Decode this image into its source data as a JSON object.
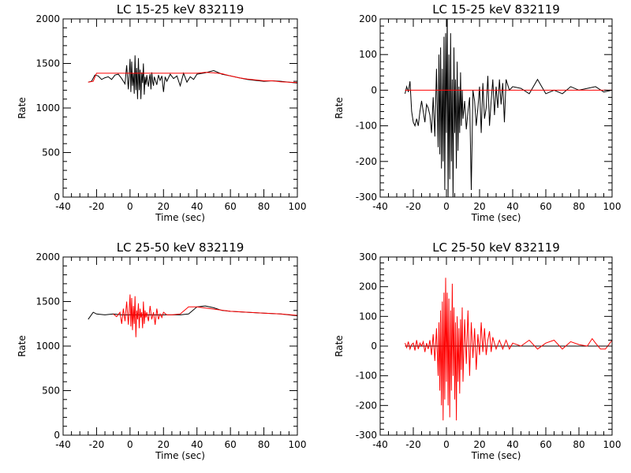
{
  "chart_data": [
    {
      "type": "line",
      "title": "LC 15-25 keV  832119",
      "xlabel": "Time (sec)",
      "ylabel": "Rate",
      "xlim": [
        -40,
        100
      ],
      "ylim": [
        0,
        2000
      ],
      "xticks": [
        -40,
        -20,
        0,
        20,
        40,
        60,
        80,
        100
      ],
      "yticks": [
        0,
        500,
        1000,
        1500,
        2000
      ],
      "grid": false,
      "series": [
        {
          "color": "#000000",
          "x": [
            -25,
            -23,
            -21,
            -19,
            -17,
            -15,
            -13,
            -11,
            -9,
            -7,
            -5,
            -3,
            -2,
            -1,
            0,
            0.5,
            1,
            1.5,
            2,
            2.5,
            3,
            3.5,
            4,
            4.5,
            5,
            5.5,
            6,
            6.5,
            7,
            7.5,
            8,
            8.5,
            9,
            9.5,
            10,
            10.5,
            11,
            11.5,
            12,
            12.5,
            13,
            13.5,
            14,
            14.5,
            15,
            16,
            17,
            18,
            19,
            20,
            21,
            22,
            24,
            26,
            28,
            30,
            32,
            34,
            36,
            38,
            40,
            45,
            50,
            55,
            60,
            65,
            70,
            75,
            80,
            85,
            90,
            95,
            100
          ],
          "y": [
            1290,
            1300,
            1370,
            1360,
            1320,
            1340,
            1350,
            1320,
            1370,
            1380,
            1330,
            1270,
            1480,
            1210,
            1550,
            1180,
            1520,
            1250,
            1390,
            1160,
            1590,
            1200,
            1450,
            1100,
            1560,
            1200,
            1430,
            1100,
            1400,
            1280,
            1500,
            1150,
            1350,
            1260,
            1370,
            1300,
            1240,
            1330,
            1380,
            1210,
            1400,
            1300,
            1250,
            1350,
            1320,
            1260,
            1370,
            1310,
            1360,
            1180,
            1350,
            1300,
            1380,
            1330,
            1360,
            1250,
            1390,
            1290,
            1350,
            1320,
            1380,
            1395,
            1420,
            1380,
            1360,
            1340,
            1320,
            1310,
            1300,
            1305,
            1300,
            1290,
            1280
          ]
        },
        {
          "color": "#ff0000",
          "x": [
            -25,
            -22,
            -20,
            0,
            20,
            40,
            45,
            50,
            55,
            60,
            65,
            70,
            75,
            80,
            85,
            90,
            95,
            100
          ],
          "y": [
            1290,
            1300,
            1390,
            1390,
            1390,
            1390,
            1400,
            1395,
            1385,
            1360,
            1340,
            1325,
            1315,
            1305,
            1305,
            1295,
            1290,
            1285
          ]
        }
      ]
    },
    {
      "type": "line",
      "title": "LC 15-25 keV  832119",
      "xlabel": "Time (sec)",
      "ylabel": "Rate",
      "xlim": [
        -40,
        100
      ],
      "ylim": [
        -300,
        200
      ],
      "xticks": [
        -40,
        -20,
        0,
        20,
        40,
        60,
        80,
        100
      ],
      "yticks": [
        -300,
        -200,
        -100,
        0,
        100,
        200
      ],
      "grid": false,
      "series": [
        {
          "color": "#000000",
          "x": [
            -25,
            -24,
            -23,
            -22,
            -21,
            -20,
            -19,
            -18,
            -17,
            -16,
            -15,
            -14,
            -13,
            -12,
            -11,
            -10,
            -9,
            -8,
            -7,
            -6,
            -5,
            -4.5,
            -4,
            -3.5,
            -3,
            -2.5,
            -2,
            -1.5,
            -1,
            -0.5,
            0,
            0.5,
            1,
            1.5,
            2,
            2.5,
            3,
            3.5,
            4,
            4.5,
            5,
            5.5,
            6,
            6.5,
            7,
            7.5,
            8,
            8.5,
            9,
            9.5,
            10,
            11,
            12,
            13,
            14,
            15,
            16,
            17,
            18,
            19,
            20,
            21,
            22,
            23,
            24,
            25,
            26,
            27,
            28,
            29,
            30,
            31,
            32,
            33,
            34,
            35,
            36,
            38,
            40,
            45,
            50,
            55,
            60,
            65,
            70,
            75,
            80,
            85,
            90,
            95,
            100
          ],
          "y": [
            -10,
            10,
            -5,
            25,
            -60,
            -90,
            -100,
            -80,
            -100,
            -60,
            -30,
            -60,
            -90,
            -40,
            -50,
            -70,
            -120,
            -20,
            -130,
            60,
            -160,
            100,
            -180,
            120,
            -220,
            60,
            -200,
            150,
            -280,
            160,
            -120,
            220,
            -300,
            100,
            -250,
            160,
            -200,
            30,
            -310,
            120,
            -120,
            30,
            -220,
            80,
            -170,
            10,
            -120,
            50,
            -100,
            0,
            -80,
            -30,
            -110,
            -60,
            -20,
            -280,
            0,
            -30,
            -100,
            -50,
            10,
            -120,
            20,
            -80,
            -50,
            40,
            -100,
            -30,
            30,
            -70,
            10,
            -50,
            30,
            -40,
            20,
            -90,
            30,
            0,
            10,
            5,
            -10,
            30,
            -10,
            0,
            -10,
            10,
            0,
            5,
            10,
            -5,
            0
          ]
        },
        {
          "color": "#ff0000",
          "x": [
            -25,
            100
          ],
          "y": [
            0,
            0
          ]
        }
      ]
    },
    {
      "type": "line",
      "title": "LC 25-50 keV  832119",
      "xlabel": "Time (sec)",
      "ylabel": "Rate",
      "xlim": [
        -40,
        100
      ],
      "ylim": [
        0,
        2000
      ],
      "xticks": [
        -40,
        -20,
        0,
        20,
        40,
        60,
        80,
        100
      ],
      "yticks": [
        0,
        500,
        1000,
        1500,
        2000
      ],
      "grid": false,
      "series": [
        {
          "color": "#000000",
          "x": [
            -25,
            -22,
            -20,
            -15,
            -10,
            -5,
            0,
            10,
            20,
            30,
            35,
            40,
            45,
            50,
            55,
            60,
            70,
            80,
            90,
            100
          ],
          "y": [
            1300,
            1380,
            1360,
            1350,
            1360,
            1350,
            1350,
            1350,
            1350,
            1350,
            1360,
            1440,
            1450,
            1430,
            1400,
            1390,
            1380,
            1370,
            1360,
            1340
          ]
        },
        {
          "color": "#ff0000",
          "x": [
            -10,
            -8,
            -6,
            -5,
            -4,
            -3,
            -2,
            -1,
            0,
            0.5,
            1,
            1.5,
            2,
            2.5,
            3,
            3.5,
            4,
            4.5,
            5,
            5.5,
            6,
            6.5,
            7,
            7.5,
            8,
            8.5,
            9,
            9.5,
            10,
            11,
            12,
            13,
            14,
            15,
            16,
            17,
            18,
            19,
            20,
            22,
            25,
            30,
            35,
            40,
            60,
            80,
            90,
            100
          ],
          "y": [
            1360,
            1330,
            1380,
            1250,
            1420,
            1280,
            1500,
            1240,
            1580,
            1220,
            1540,
            1180,
            1450,
            1250,
            1560,
            1100,
            1400,
            1300,
            1480,
            1200,
            1420,
            1320,
            1380,
            1200,
            1500,
            1250,
            1400,
            1320,
            1380,
            1280,
            1450,
            1300,
            1380,
            1240,
            1420,
            1300,
            1360,
            1320,
            1380,
            1350,
            1350,
            1360,
            1440,
            1440,
            1390,
            1370,
            1360,
            1345
          ]
        }
      ]
    },
    {
      "type": "line",
      "title": "LC 25-50 keV  832119",
      "xlabel": "Time (sec)",
      "ylabel": "Rate",
      "xlim": [
        -40,
        100
      ],
      "ylim": [
        -300,
        300
      ],
      "xticks": [
        -40,
        -20,
        0,
        20,
        40,
        60,
        80,
        100
      ],
      "yticks": [
        -300,
        -200,
        -100,
        0,
        100,
        200,
        300
      ],
      "grid": false,
      "series": [
        {
          "color": "#000000",
          "x": [
            -25,
            100
          ],
          "y": [
            0,
            0
          ]
        },
        {
          "color": "#ff0000",
          "x": [
            -25,
            -24,
            -23,
            -22,
            -21,
            -20,
            -19,
            -18,
            -17,
            -16,
            -15,
            -14,
            -13,
            -12,
            -11,
            -10,
            -9,
            -8,
            -7,
            -6,
            -5,
            -4.5,
            -4,
            -3.5,
            -3,
            -2.5,
            -2,
            -1.5,
            -1,
            -0.5,
            0,
            0.5,
            1,
            1.5,
            2,
            2.5,
            3,
            3.5,
            4,
            4.5,
            5,
            5.5,
            6,
            6.5,
            7,
            7.5,
            8,
            8.5,
            9,
            9.5,
            10,
            11,
            12,
            13,
            14,
            15,
            16,
            17,
            18,
            19,
            20,
            21,
            22,
            23,
            24,
            25,
            26,
            27,
            28,
            30,
            32,
            34,
            36,
            38,
            40,
            45,
            50,
            55,
            60,
            65,
            70,
            75,
            80,
            85,
            88,
            90,
            93,
            96,
            100
          ],
          "y": [
            10,
            -5,
            15,
            -10,
            5,
            10,
            -15,
            20,
            -10,
            10,
            0,
            15,
            -20,
            10,
            -10,
            20,
            -30,
            40,
            -50,
            60,
            -100,
            80,
            -150,
            120,
            -200,
            150,
            -250,
            180,
            -180,
            230,
            -120,
            180,
            -200,
            160,
            -240,
            120,
            -150,
            210,
            -100,
            130,
            -180,
            80,
            -250,
            100,
            -120,
            60,
            -160,
            90,
            -80,
            130,
            -120,
            90,
            -60,
            120,
            -100,
            80,
            -40,
            60,
            -80,
            40,
            -30,
            80,
            -20,
            60,
            -30,
            20,
            50,
            -20,
            30,
            -10,
            20,
            -10,
            20,
            -10,
            10,
            0,
            20,
            -10,
            10,
            20,
            -10,
            15,
            5,
            0,
            25,
            10,
            -10,
            -10,
            20
          ]
        }
      ]
    }
  ]
}
